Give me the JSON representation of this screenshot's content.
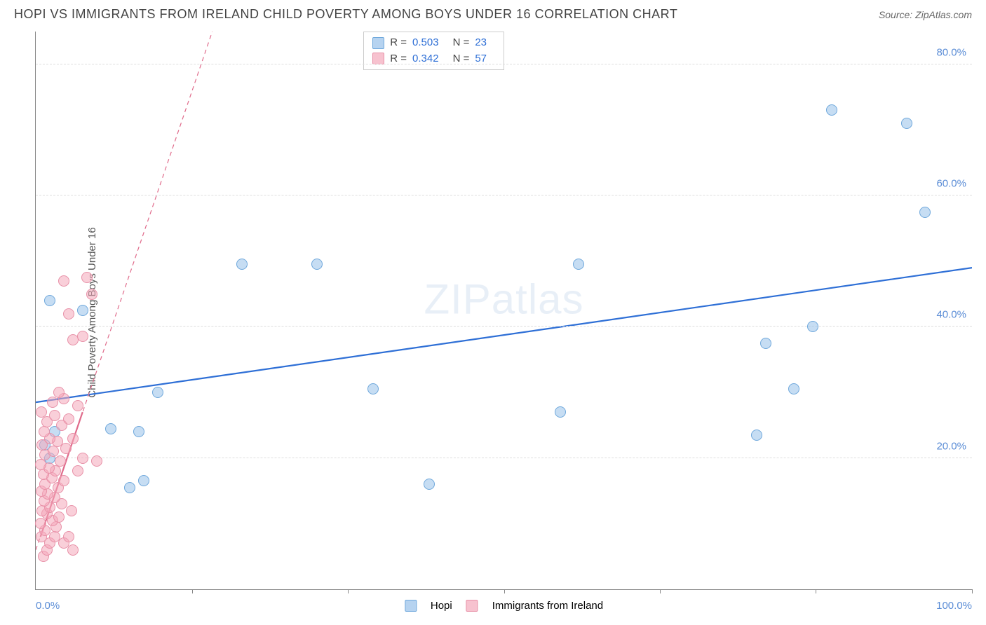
{
  "title": "HOPI VS IMMIGRANTS FROM IRELAND CHILD POVERTY AMONG BOYS UNDER 16 CORRELATION CHART",
  "source": "Source: ZipAtlas.com",
  "y_axis_label": "Child Poverty Among Boys Under 16",
  "watermark": "ZIPatlas",
  "chart": {
    "type": "scatter",
    "xlim": [
      0,
      100
    ],
    "ylim": [
      0,
      85
    ],
    "x_min_label": "0.0%",
    "x_max_label": "100.0%",
    "x_ticks": [
      16.67,
      33.33,
      50,
      66.67,
      83.33,
      100
    ],
    "y_gridlines": [
      {
        "value": 20,
        "label": "20.0%"
      },
      {
        "value": 40,
        "label": "40.0%"
      },
      {
        "value": 60,
        "label": "60.0%"
      },
      {
        "value": 80,
        "label": "80.0%"
      }
    ],
    "marker_size": 16,
    "colors": {
      "blue_fill": "#97c1e9",
      "blue_stroke": "#6fa8dc",
      "pink_fill": "#f4a8ba",
      "pink_stroke": "#e891a8",
      "grid": "#dddddd",
      "axis": "#888888",
      "tick_text": "#5b8dd6",
      "regression_blue": "#2e6fd6",
      "regression_pink": "#e06b8b"
    },
    "series": [
      {
        "name": "Hopi",
        "color_key": "blue",
        "stats": {
          "R": "0.503",
          "N": "23"
        },
        "regression": {
          "y_at_x0": 28.5,
          "y_at_x100": 49,
          "dashed": false,
          "width": 2.2
        },
        "points": [
          {
            "x": 1.5,
            "y": 44
          },
          {
            "x": 5,
            "y": 42.5
          },
          {
            "x": 2,
            "y": 24
          },
          {
            "x": 1,
            "y": 22
          },
          {
            "x": 1.5,
            "y": 20
          },
          {
            "x": 8,
            "y": 24.5
          },
          {
            "x": 10,
            "y": 15.5
          },
          {
            "x": 11.5,
            "y": 16.5
          },
          {
            "x": 13,
            "y": 30
          },
          {
            "x": 11,
            "y": 24
          },
          {
            "x": 22,
            "y": 49.5
          },
          {
            "x": 30,
            "y": 49.5
          },
          {
            "x": 36,
            "y": 30.5
          },
          {
            "x": 42,
            "y": 16
          },
          {
            "x": 56,
            "y": 27
          },
          {
            "x": 58,
            "y": 49.5
          },
          {
            "x": 78,
            "y": 37.5
          },
          {
            "x": 77,
            "y": 23.5
          },
          {
            "x": 81,
            "y": 30.5
          },
          {
            "x": 83,
            "y": 40
          },
          {
            "x": 85,
            "y": 73
          },
          {
            "x": 93,
            "y": 71
          },
          {
            "x": 95,
            "y": 57.5
          }
        ]
      },
      {
        "name": "Immigrants from Ireland",
        "color_key": "pink",
        "stats": {
          "R": "0.342",
          "N": "57"
        },
        "regression": {
          "y_at_x0": 6,
          "y_at_x100": 425,
          "dashed": true,
          "width": 1.2
        },
        "regression_solid_segment": {
          "x0": 0.5,
          "x1": 5,
          "y0": 8,
          "y1": 27,
          "width": 2.2
        },
        "points": [
          {
            "x": 0.8,
            "y": 5
          },
          {
            "x": 1.2,
            "y": 6
          },
          {
            "x": 1.5,
            "y": 7
          },
          {
            "x": 0.6,
            "y": 8
          },
          {
            "x": 2,
            "y": 8
          },
          {
            "x": 1,
            "y": 9
          },
          {
            "x": 2.2,
            "y": 9.5
          },
          {
            "x": 0.5,
            "y": 10
          },
          {
            "x": 1.8,
            "y": 10.5
          },
          {
            "x": 2.5,
            "y": 11
          },
          {
            "x": 3,
            "y": 7
          },
          {
            "x": 1.2,
            "y": 11.5
          },
          {
            "x": 0.7,
            "y": 12
          },
          {
            "x": 1.5,
            "y": 12.5
          },
          {
            "x": 2.8,
            "y": 13
          },
          {
            "x": 0.9,
            "y": 13.5
          },
          {
            "x": 2,
            "y": 14
          },
          {
            "x": 3.5,
            "y": 8
          },
          {
            "x": 1.3,
            "y": 14.5
          },
          {
            "x": 0.6,
            "y": 15
          },
          {
            "x": 2.4,
            "y": 15.5
          },
          {
            "x": 1,
            "y": 16
          },
          {
            "x": 3,
            "y": 16.5
          },
          {
            "x": 1.7,
            "y": 17
          },
          {
            "x": 0.8,
            "y": 17.5
          },
          {
            "x": 2.1,
            "y": 18
          },
          {
            "x": 4.5,
            "y": 18
          },
          {
            "x": 1.4,
            "y": 18.5
          },
          {
            "x": 0.5,
            "y": 19
          },
          {
            "x": 2.6,
            "y": 19.5
          },
          {
            "x": 5,
            "y": 20
          },
          {
            "x": 1,
            "y": 20.5
          },
          {
            "x": 1.9,
            "y": 21
          },
          {
            "x": 3.2,
            "y": 21.5
          },
          {
            "x": 0.7,
            "y": 22
          },
          {
            "x": 2.3,
            "y": 22.5
          },
          {
            "x": 1.5,
            "y": 23
          },
          {
            "x": 4,
            "y": 23
          },
          {
            "x": 0.9,
            "y": 24
          },
          {
            "x": 2.8,
            "y": 25
          },
          {
            "x": 1.2,
            "y": 25.5
          },
          {
            "x": 3.5,
            "y": 26
          },
          {
            "x": 2,
            "y": 26.5
          },
          {
            "x": 0.6,
            "y": 27
          },
          {
            "x": 4.5,
            "y": 28
          },
          {
            "x": 1.8,
            "y": 28.5
          },
          {
            "x": 3,
            "y": 29
          },
          {
            "x": 2.5,
            "y": 30
          },
          {
            "x": 6.5,
            "y": 19.5
          },
          {
            "x": 4,
            "y": 38
          },
          {
            "x": 5,
            "y": 38.5
          },
          {
            "x": 3.5,
            "y": 42
          },
          {
            "x": 6,
            "y": 45
          },
          {
            "x": 3,
            "y": 47
          },
          {
            "x": 5.5,
            "y": 47.5
          },
          {
            "x": 4,
            "y": 6
          },
          {
            "x": 3.8,
            "y": 12
          }
        ]
      }
    ]
  },
  "stats_legend": {
    "R_label": "R =",
    "N_label": "N ="
  },
  "bottom_legend": [
    {
      "color": "blue",
      "label": "Hopi"
    },
    {
      "color": "pink",
      "label": "Immigrants from Ireland"
    }
  ]
}
